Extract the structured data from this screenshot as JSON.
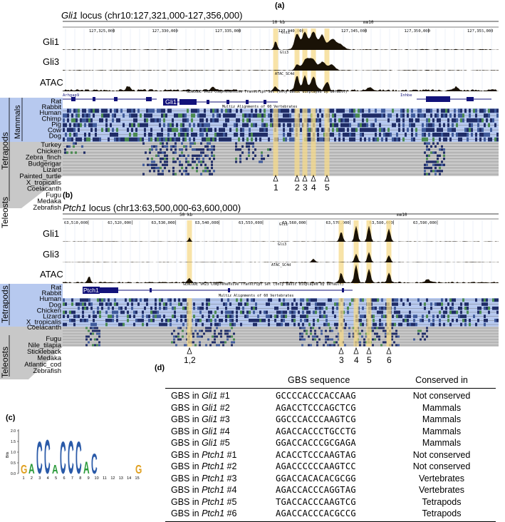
{
  "panel_a": {
    "label": "(a)",
    "title_gene": "Gli1",
    "title_rest": " locus (chr10:127,321,000-127,356,000)",
    "scale_text": "10 kb",
    "assembly": "mm10",
    "ruler": [
      "127,325,000",
      "127,330,000",
      "127,335,000",
      "127,340,000",
      "127,345,000",
      "127,350,000",
      "127,355,000"
    ],
    "tracks": [
      "Gli1",
      "Gli3",
      "ATAC"
    ],
    "track_tags": [
      "Gli1",
      "Gli3",
      "ATAC_SC4d"
    ],
    "gene_left": "Arhgap9",
    "gene_main": "Gli1",
    "gene_right": "Inhbe",
    "gencode_text": "GENCODE VM23 Comprehensive Transcript Set (only Basic displayed by default)",
    "multiz_text": "Multiz Alignments of 60 Vertebrates",
    "mammals": [
      "Rat",
      "Rabbit",
      "Human",
      "Chimp",
      "Pig",
      "Cow",
      "Dog"
    ],
    "others": [
      "Turkey",
      "Chicken",
      "Zebra_finch",
      "Budgerigar",
      "Lizard",
      "Painted_turtle",
      "X_tropicalis",
      "Coelacanth",
      "Fugu",
      "Medaka",
      "Zebrafish"
    ],
    "group_mammals": "Mammals",
    "group_tetrapods": "Tetrapods",
    "group_teleosts": "Teleosts",
    "gbs_markers": [
      "1",
      "2",
      "3",
      "4",
      "5"
    ]
  },
  "panel_b": {
    "label": "(b)",
    "title_gene": "Ptch1",
    "title_rest": " locus (chr13:63,500,000-63,600,000)",
    "scale_text": "50 kb",
    "assembly": "mm10",
    "ruler": [
      "63,510,000",
      "63,520,000",
      "63,530,000",
      "63,540,000",
      "63,550,000",
      "63,560,000",
      "63,570,000",
      "63,580,000",
      "63,590,000"
    ],
    "tracks": [
      "Gli1",
      "Gli3",
      "ATAC"
    ],
    "track_tags": [
      "Gli1",
      "Gli3",
      "ATAC_SC4d"
    ],
    "gene_main": "Ptch1",
    "gencode_text": "GENCODE VM23 Comprehensive Transcript Set (only Basic displayed by default)",
    "multiz_text": "Multiz Alignments of 60 Vertebrates",
    "tetrapods": [
      "Rat",
      "Rabbit",
      "Human",
      "Dog",
      "Chicken",
      "Lizard",
      "X_tropicalis"
    ],
    "coelacanth": "Coelacanth",
    "teleosts": [
      "Fugu",
      "Nile_tilapia",
      "Stickleback",
      "Medaka",
      "Atlantic_cod",
      "Zebrafish"
    ],
    "group_tetrapods": "Tetrapods",
    "group_teleosts": "Teleosts",
    "gbs_markers": [
      "1,2",
      "3",
      "4",
      "5",
      "6"
    ]
  },
  "panel_c": {
    "label": "(c)",
    "yaxis_label": "Bits",
    "yticks": [
      "2.0",
      "1.5",
      "1.0",
      "0.5",
      "0.0"
    ],
    "positions": [
      "1",
      "2",
      "3",
      "4",
      "5",
      "6",
      "7",
      "8",
      "9",
      "10",
      "11",
      "12",
      "13",
      "14",
      "15"
    ],
    "logo_letters": [
      "G",
      "A",
      "C",
      "C",
      "A",
      "C",
      "C",
      "C",
      "A",
      "C",
      "G"
    ]
  },
  "panel_d": {
    "label": "(d)",
    "headers": [
      "GBS sequence",
      "Conserved in"
    ],
    "rows": [
      {
        "prefix": "GBS in ",
        "gene": "Gli1",
        "num": " #1",
        "seq": "GCCCCACCCACCAAG",
        "cons": "Not conserved"
      },
      {
        "prefix": "GBS in ",
        "gene": "Gli1",
        "num": " #2",
        "seq": "AGACCTCCCAGCTCG",
        "cons": "Mammals"
      },
      {
        "prefix": "GBS in ",
        "gene": "Gli1",
        "num": " #3",
        "seq": "GGCCCACCCAAGTCG",
        "cons": "Mammals"
      },
      {
        "prefix": "GBS in ",
        "gene": "Gli1",
        "num": " #4",
        "seq": "AGACCACCCTGCCTG",
        "cons": "Mammals"
      },
      {
        "prefix": "GBS in ",
        "gene": "Gli1",
        "num": " #5",
        "seq": "GGACCACCCGCGAGA",
        "cons": "Mammals"
      },
      {
        "prefix": "GBS in ",
        "gene": "Ptch1",
        "num": " #1",
        "seq": "ACACCTCCCAAGTAG",
        "cons": "Not conserved"
      },
      {
        "prefix": "GBS in ",
        "gene": "Ptch1",
        "num": " #2",
        "seq": "AGACCCCCCAAGTCC",
        "cons": "Not conserved"
      },
      {
        "prefix": "GBS in ",
        "gene": "Ptch1",
        "num": " #3",
        "seq": "GGACCACACACGCGG",
        "cons": "Vertebrates"
      },
      {
        "prefix": "GBS in ",
        "gene": "Ptch1",
        "num": " #4",
        "seq": "AGACCACCCAGGTAG",
        "cons": "Vertebrates"
      },
      {
        "prefix": "GBS in ",
        "gene": "Ptch1",
        "num": " #5",
        "seq": "TGACCACCCAAGTCG",
        "cons": "Tetrapods"
      },
      {
        "prefix": "GBS in ",
        "gene": "Ptch1",
        "num": " #6",
        "seq": "AGACCACCCACGCCG",
        "cons": "Tetrapods"
      }
    ]
  },
  "colors": {
    "highlight": "#f6d98a",
    "peak_fill": "#1a1206",
    "blue_band": "#b7c9ef",
    "gray_band": "#c8c8c8",
    "gene_blue": "#12127a",
    "align_dark": "#1f2c66"
  }
}
